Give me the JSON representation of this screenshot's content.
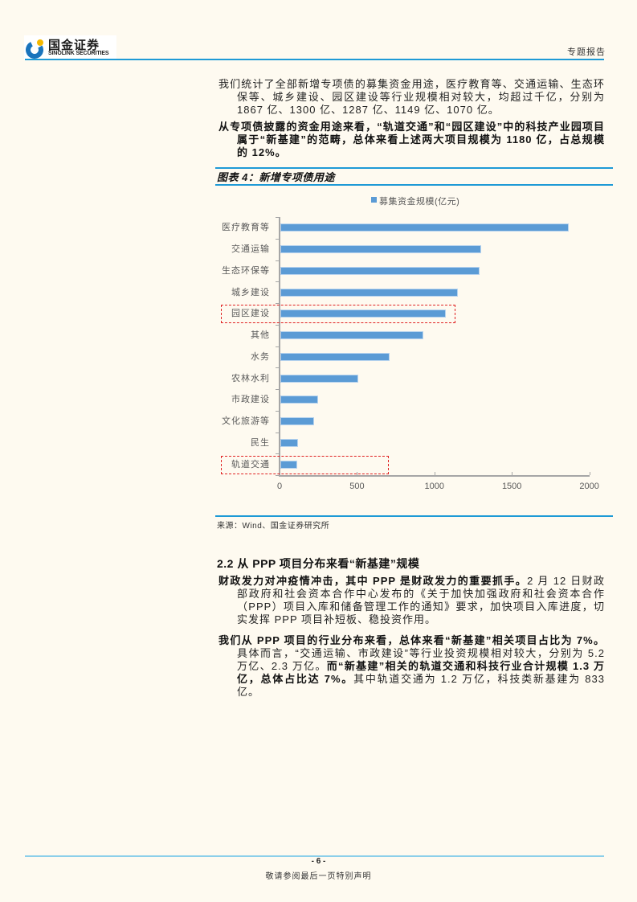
{
  "header": {
    "logo_cn": "国金证券",
    "logo_en": "SINOLINK SECURITIES",
    "report_type": "专题报告",
    "brand_color": "#1E9AD6"
  },
  "paragraphs": {
    "p1": "我们统计了全部新增专项债的募集资金用途，医疗教育等、交通运输、生态环保等、城乡建设、园区建设等行业规模相对较大，均超过千亿，分别为 1867 亿、1300 亿、1287 亿、1149 亿、1070 亿。",
    "p2": "从专项债披露的资金用途来看，“轨道交通”和“园区建设”中的科技产业园项目属于“新基建”的范畴，总体来看上述两大项目规模为 1180 亿，占总规模的 12%。",
    "p3": [
      {
        "text": "财政发力对冲疫情冲击，其中 PPP 是财政发力的重要抓手。",
        "bold": true
      },
      {
        "text": "2 月 12 日财政部政府和社会资本合作中心发布的《关于加快加强政府和社会资本合作（PPP）项目入库和储备管理工作的通知》要求，加快项目入库进度，切实发挥 PPP 项目补短板、稳投资作用。",
        "bold": false
      }
    ],
    "p4": [
      {
        "text": "我们从 PPP 项目的行业分布来看，总体来看“新基建”相关项目占比为 7%。",
        "bold": true
      },
      {
        "text": "具体而言，“交通运输、市政建设”等行业投资规模相对较大，分别为 5.2 万亿、2.3 万亿。",
        "bold": false
      },
      {
        "text": "而“新基建”相关的轨道交通和科技行业合计规模 1.3 万亿，总体占比达 7%。",
        "bold": true
      },
      {
        "text": "其中轨道交通为 1.2 万亿，科技类新基建为 833 亿。",
        "bold": false
      }
    ]
  },
  "figure": {
    "caption_prefix": "图表 ",
    "caption_num": "4",
    "caption_title": "：新增专项债用途",
    "legend_label": "募集资金规模(亿元)",
    "source": "来源：Wind、国金证券研究所"
  },
  "section": {
    "heading": "2.2 从 PPP 项目分布来看“新基建”规模"
  },
  "footer": {
    "page_number": "- 6 -",
    "note": "敬请参阅最后一页特别声明"
  },
  "chart_data": {
    "type": "bar",
    "orientation": "horizontal",
    "title": "图表 4：新增专项债用途",
    "xlabel": "",
    "ylabel": "",
    "categories": [
      "医疗教育等",
      "交通运输",
      "生态环保等",
      "城乡建设",
      "园区建设",
      "其他",
      "水务",
      "农林水利",
      "市政建设",
      "文化旅游等",
      "民生",
      "轨道交通"
    ],
    "series": [
      {
        "name": "募集资金规模(亿元)",
        "color": "#5B9BD5",
        "values": [
          1867,
          1300,
          1287,
          1149,
          1070,
          925,
          709,
          506,
          247,
          218,
          119,
          110
        ]
      }
    ],
    "xlim": [
      0,
      2000
    ],
    "xticks": [
      0,
      500,
      1000,
      1500,
      2000
    ],
    "grid": false,
    "legend_position": "top",
    "annotations": [
      {
        "type": "dashed-box",
        "category": "园区建设",
        "x_end": 1135,
        "color": "#E02020"
      },
      {
        "type": "dashed-box",
        "category": "轨道交通",
        "x_end": 705,
        "color": "#E02020"
      }
    ]
  }
}
